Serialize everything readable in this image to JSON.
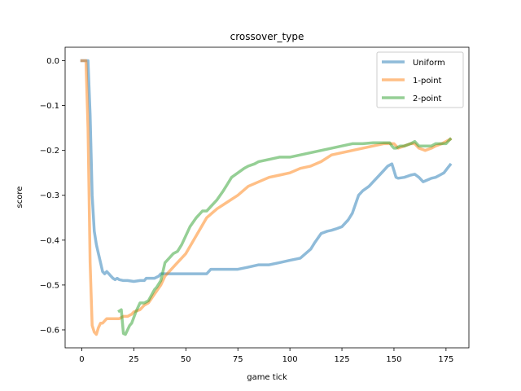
{
  "chart_data": {
    "type": "line",
    "title": "crossover_type",
    "xlabel": "game tick",
    "ylabel": "score",
    "xlim": [
      -8,
      186
    ],
    "ylim": [
      -0.64,
      0.03
    ],
    "xticks": [
      0,
      25,
      50,
      75,
      100,
      125,
      150,
      175
    ],
    "yticks": [
      0.0,
      -0.1,
      -0.2,
      -0.3,
      -0.4,
      -0.5,
      -0.6
    ],
    "xtick_labels": [
      "0",
      "25",
      "50",
      "75",
      "100",
      "125",
      "150",
      "175"
    ],
    "ytick_labels": [
      "0.0",
      "−0.1",
      "−0.2",
      "−0.3",
      "−0.4",
      "−0.5",
      "−0.6"
    ],
    "grid": false,
    "legend_position": "top-right",
    "series": [
      {
        "name": "Uniform",
        "color": "#1f77b4",
        "x": [
          0,
          2,
          3,
          4,
          5,
          6,
          7,
          8,
          9,
          10,
          11,
          12,
          13,
          14,
          15,
          16,
          17,
          18,
          20,
          22,
          25,
          28,
          30,
          31,
          32,
          35,
          37,
          38,
          40,
          45,
          50,
          55,
          60,
          62,
          70,
          75,
          80,
          85,
          90,
          95,
          100,
          105,
          110,
          112,
          115,
          118,
          120,
          122,
          125,
          128,
          130,
          133,
          135,
          138,
          140,
          143,
          145,
          147,
          149,
          150,
          151,
          152,
          155,
          158,
          160,
          162,
          164,
          165,
          168,
          170,
          172,
          174,
          176,
          177
        ],
        "y": [
          0.0,
          0.0,
          0.0,
          -0.12,
          -0.3,
          -0.38,
          -0.41,
          -0.43,
          -0.45,
          -0.47,
          -0.475,
          -0.47,
          -0.475,
          -0.48,
          -0.485,
          -0.488,
          -0.485,
          -0.488,
          -0.49,
          -0.49,
          -0.492,
          -0.49,
          -0.49,
          -0.485,
          -0.485,
          -0.485,
          -0.48,
          -0.475,
          -0.475,
          -0.475,
          -0.475,
          -0.475,
          -0.475,
          -0.465,
          -0.465,
          -0.465,
          -0.46,
          -0.455,
          -0.455,
          -0.45,
          -0.445,
          -0.44,
          -0.42,
          -0.405,
          -0.385,
          -0.38,
          -0.378,
          -0.375,
          -0.37,
          -0.355,
          -0.34,
          -0.3,
          -0.29,
          -0.28,
          -0.27,
          -0.255,
          -0.245,
          -0.235,
          -0.23,
          -0.245,
          -0.26,
          -0.262,
          -0.26,
          -0.255,
          -0.253,
          -0.26,
          -0.27,
          -0.268,
          -0.262,
          -0.26,
          -0.255,
          -0.25,
          -0.238,
          -0.232
        ]
      },
      {
        "name": "1-point",
        "color": "#ff7f0e",
        "x": [
          0,
          2,
          3,
          4,
          5,
          6,
          7,
          8,
          9,
          10,
          12,
          14,
          16,
          18,
          20,
          22,
          24,
          25,
          28,
          30,
          32,
          35,
          38,
          40,
          42,
          45,
          50,
          55,
          60,
          65,
          70,
          75,
          80,
          85,
          90,
          95,
          100,
          105,
          110,
          115,
          120,
          125,
          130,
          135,
          140,
          145,
          150,
          152,
          155,
          158,
          160,
          162,
          165,
          168,
          170,
          173,
          175,
          177
        ],
        "y": [
          0.0,
          0.0,
          -0.15,
          -0.45,
          -0.59,
          -0.605,
          -0.61,
          -0.595,
          -0.585,
          -0.585,
          -0.575,
          -0.575,
          -0.575,
          -0.575,
          -0.57,
          -0.57,
          -0.565,
          -0.56,
          -0.555,
          -0.545,
          -0.54,
          -0.52,
          -0.5,
          -0.48,
          -0.47,
          -0.455,
          -0.43,
          -0.39,
          -0.35,
          -0.33,
          -0.315,
          -0.3,
          -0.28,
          -0.27,
          -0.26,
          -0.255,
          -0.25,
          -0.24,
          -0.235,
          -0.225,
          -0.21,
          -0.205,
          -0.2,
          -0.195,
          -0.19,
          -0.185,
          -0.185,
          -0.195,
          -0.19,
          -0.185,
          -0.185,
          -0.195,
          -0.2,
          -0.195,
          -0.19,
          -0.185,
          -0.18,
          -0.175
        ]
      },
      {
        "name": "2-point",
        "color": "#2ca02c",
        "x": [
          18,
          19,
          20,
          21,
          22,
          23,
          24,
          26,
          28,
          30,
          32,
          35,
          36,
          38,
          40,
          42,
          44,
          46,
          48,
          50,
          52,
          55,
          58,
          60,
          62,
          65,
          68,
          70,
          72,
          75,
          78,
          80,
          83,
          85,
          88,
          90,
          95,
          100,
          105,
          110,
          115,
          120,
          125,
          130,
          135,
          140,
          145,
          148,
          149,
          150,
          151,
          153,
          155,
          158,
          160,
          162,
          164,
          166,
          168,
          170,
          172,
          175,
          177
        ],
        "y": [
          -0.558,
          -0.555,
          -0.608,
          -0.61,
          -0.6,
          -0.59,
          -0.585,
          -0.56,
          -0.54,
          -0.54,
          -0.535,
          -0.51,
          -0.505,
          -0.49,
          -0.45,
          -0.44,
          -0.43,
          -0.425,
          -0.41,
          -0.39,
          -0.37,
          -0.35,
          -0.335,
          -0.335,
          -0.325,
          -0.31,
          -0.29,
          -0.275,
          -0.26,
          -0.25,
          -0.24,
          -0.235,
          -0.23,
          -0.225,
          -0.222,
          -0.22,
          -0.215,
          -0.215,
          -0.21,
          -0.205,
          -0.2,
          -0.195,
          -0.19,
          -0.185,
          -0.185,
          -0.183,
          -0.183,
          -0.183,
          -0.19,
          -0.195,
          -0.195,
          -0.19,
          -0.19,
          -0.185,
          -0.18,
          -0.19,
          -0.19,
          -0.19,
          -0.19,
          -0.185,
          -0.185,
          -0.185,
          -0.175
        ]
      }
    ]
  }
}
